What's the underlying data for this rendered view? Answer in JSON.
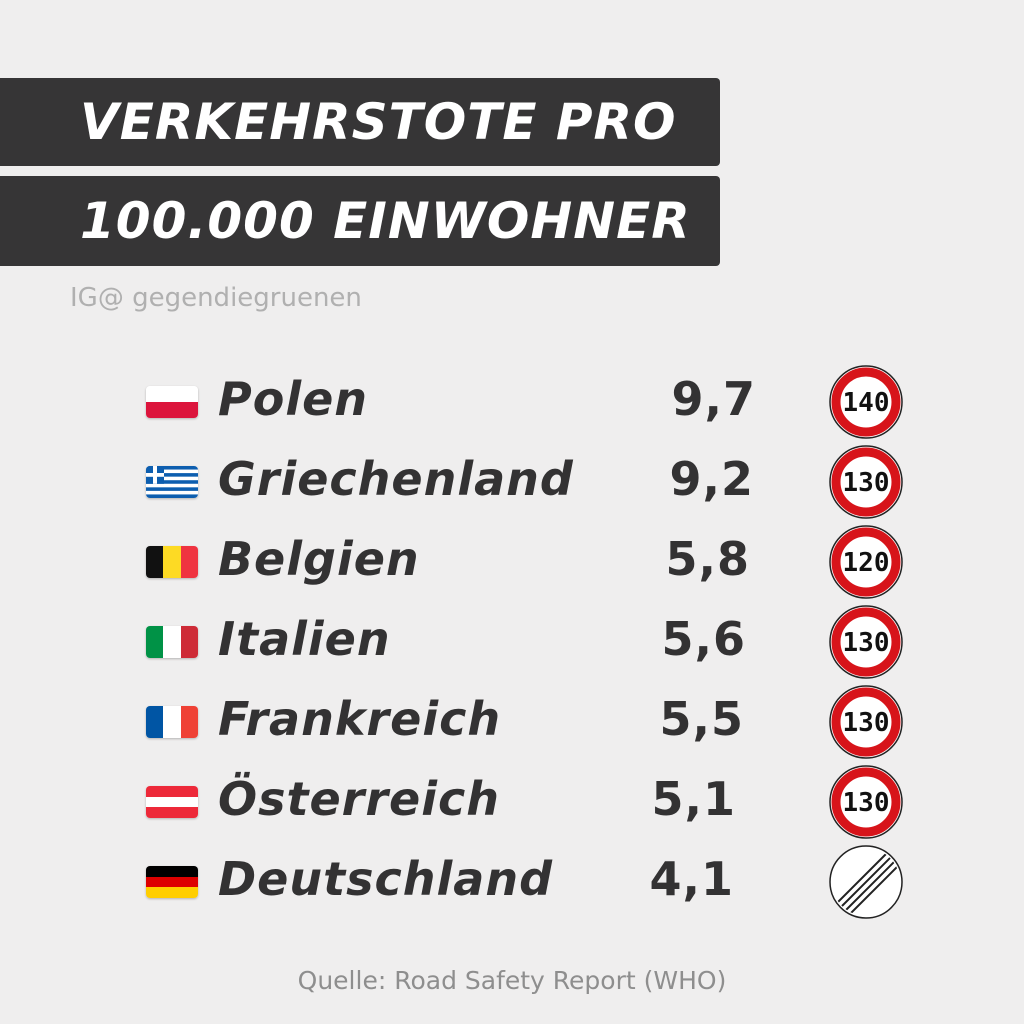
{
  "title": {
    "line1": "VERKEHRSTOTE PRO",
    "line2": "100.000 EINWOHNER"
  },
  "handle": "IG@ gegendiegruenen",
  "rows": [
    {
      "country": "Polen",
      "value": "9,7",
      "speed_limit": "140",
      "flag_icon": "poland-flag-icon"
    },
    {
      "country": "Griechenland",
      "value": "9,2",
      "speed_limit": "130",
      "flag_icon": "greece-flag-icon"
    },
    {
      "country": "Belgien",
      "value": "5,8",
      "speed_limit": "120",
      "flag_icon": "belgium-flag-icon"
    },
    {
      "country": "Italien",
      "value": "5,6",
      "speed_limit": "130",
      "flag_icon": "italy-flag-icon"
    },
    {
      "country": "Frankreich",
      "value": "5,5",
      "speed_limit": "130",
      "flag_icon": "france-flag-icon"
    },
    {
      "country": "Österreich",
      "value": "5,1",
      "speed_limit": "130",
      "flag_icon": "austria-flag-icon"
    },
    {
      "country": "Deutschland",
      "value": "4,1",
      "speed_limit": "",
      "flag_icon": "germany-flag-icon",
      "sign_icon": "no-speed-limit-sign-icon"
    }
  ],
  "source": "Quelle: Road Safety Report (WHO)",
  "colors": {
    "background": "#efeeee",
    "banner": "#363536",
    "text": "#333233",
    "sign_red": "#d7141a"
  }
}
